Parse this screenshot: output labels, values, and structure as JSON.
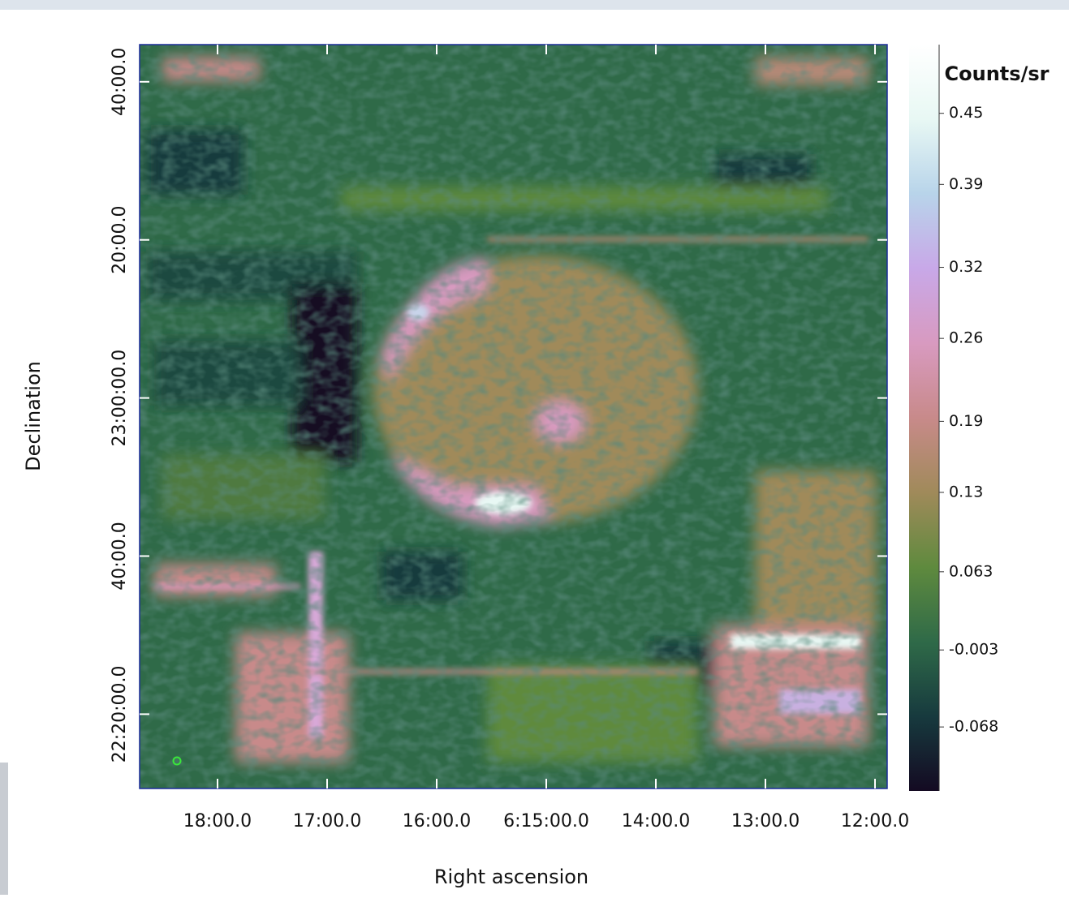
{
  "chart_data": {
    "type": "image",
    "xlabel": "Right ascension",
    "ylabel": "Declination",
    "colorbar_label": "Counts/sr",
    "xlim": [
      18.711,
      11.889
    ],
    "xticks": [
      {
        "value": 18,
        "label": "18:00.0"
      },
      {
        "value": 17,
        "label": "17:00.0"
      },
      {
        "value": 16,
        "label": "16:00.0"
      },
      {
        "value": 15,
        "label": "6:15:00.0"
      },
      {
        "value": 14,
        "label": "14:00.0"
      },
      {
        "value": 13,
        "label": "13:00.0"
      },
      {
        "value": 12,
        "label": "12:00.0"
      }
    ],
    "ylim": [
      1330.6,
      1424.7
    ],
    "yticks": [
      {
        "value": 1420,
        "label": "40:00.0"
      },
      {
        "value": 1400,
        "label": "20:00.0"
      },
      {
        "value": 1380,
        "label": "23:00:00.0"
      },
      {
        "value": 1360,
        "label": "40:00.0"
      },
      {
        "value": 1340,
        "label": "22:20:00.0"
      }
    ],
    "clim": [
      -0.122,
      0.508
    ],
    "cticks": [
      0.45,
      0.39,
      0.32,
      0.26,
      0.19,
      0.13,
      0.063,
      -0.003,
      -0.068
    ],
    "colormap": [
      "#140a22",
      "#173a3e",
      "#2f6a48",
      "#5f8a3e",
      "#a08a5a",
      "#c88a8a",
      "#d89ac0",
      "#c8a8e8",
      "#b8d4ea",
      "#e8f8f4",
      "#ffffff"
    ]
  }
}
